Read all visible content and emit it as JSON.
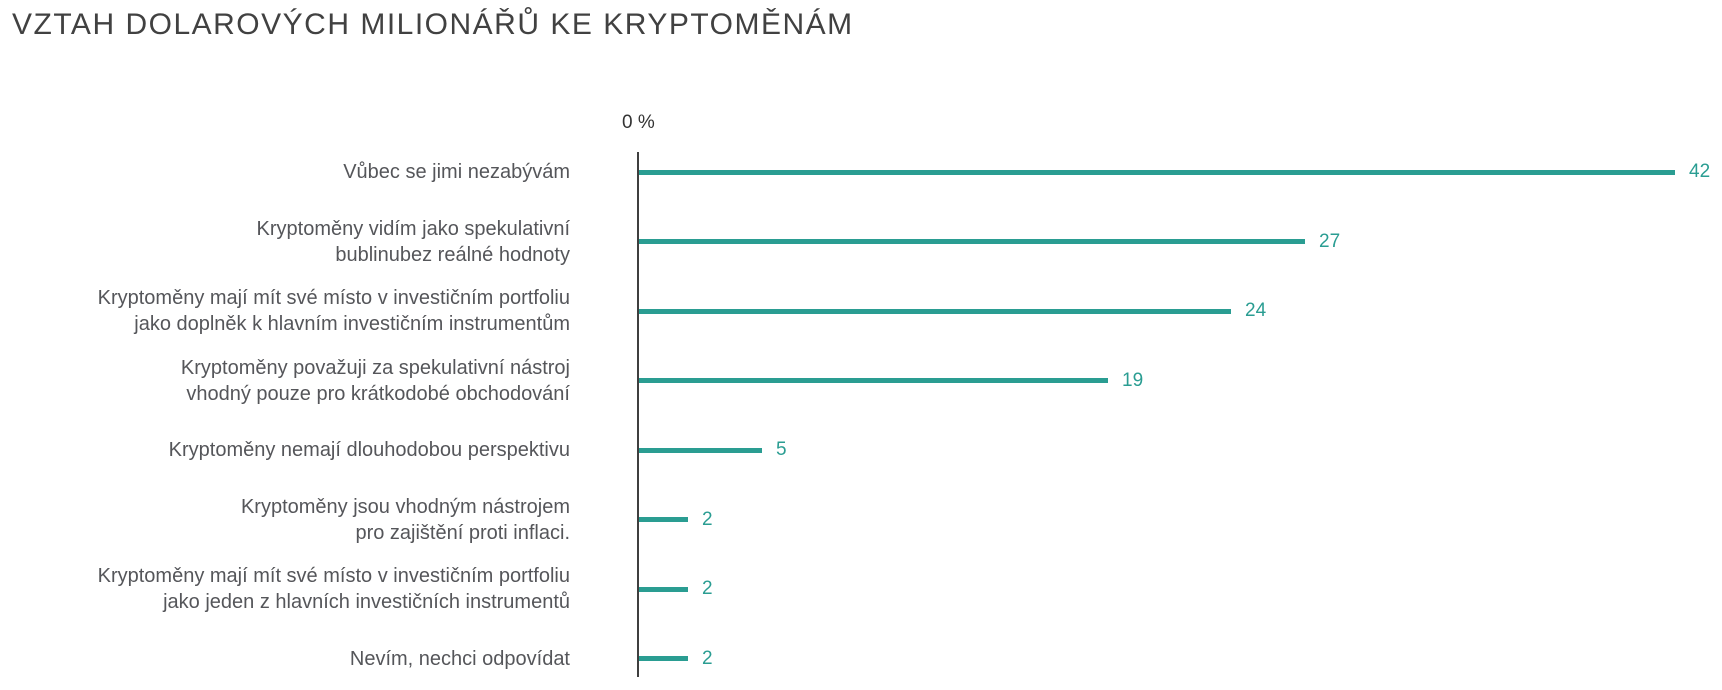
{
  "chart_data": {
    "type": "bar",
    "orientation": "horizontal",
    "title": "VZTAH DOLAROVÝCH MILIONÁŘŮ KE KRYPTOMĚNÁM",
    "axis_tick_label": "0 %",
    "xlabel": "",
    "ylabel": "",
    "xlim": [
      0,
      44
    ],
    "grid": false,
    "legend": "none",
    "categories": [
      "Vůbec se jimi nezabývám",
      "Kryptoměny vidím jako spekulativní\nbublinubez reálné hodnoty",
      "Kryptoměny mají mít své místo v investičním portfoliu\njako doplněk k hlavním investičním instrumentům",
      "Kryptoměny považuji za spekulativní nástroj\nvhodný pouze pro krátkodobé obchodování",
      "Kryptoměny nemají dlouhodobou perspektivu",
      "Kryptoměny jsou vhodným nástrojem\npro zajištění proti inflaci.",
      "Kryptoměny mají mít své místo v investičním portfoliu\njako jeden z hlavních investičních instrumentů",
      "Nevím, nechci odpovídat"
    ],
    "values": [
      42,
      27,
      24,
      19,
      5,
      2,
      2,
      2
    ],
    "value_unit": "%"
  },
  "colors": {
    "bar": "#2a9d92",
    "value_label": "#2a9d92",
    "axis": "#3f3f3f",
    "title_text": "#414141",
    "category_text": "#55565a"
  }
}
